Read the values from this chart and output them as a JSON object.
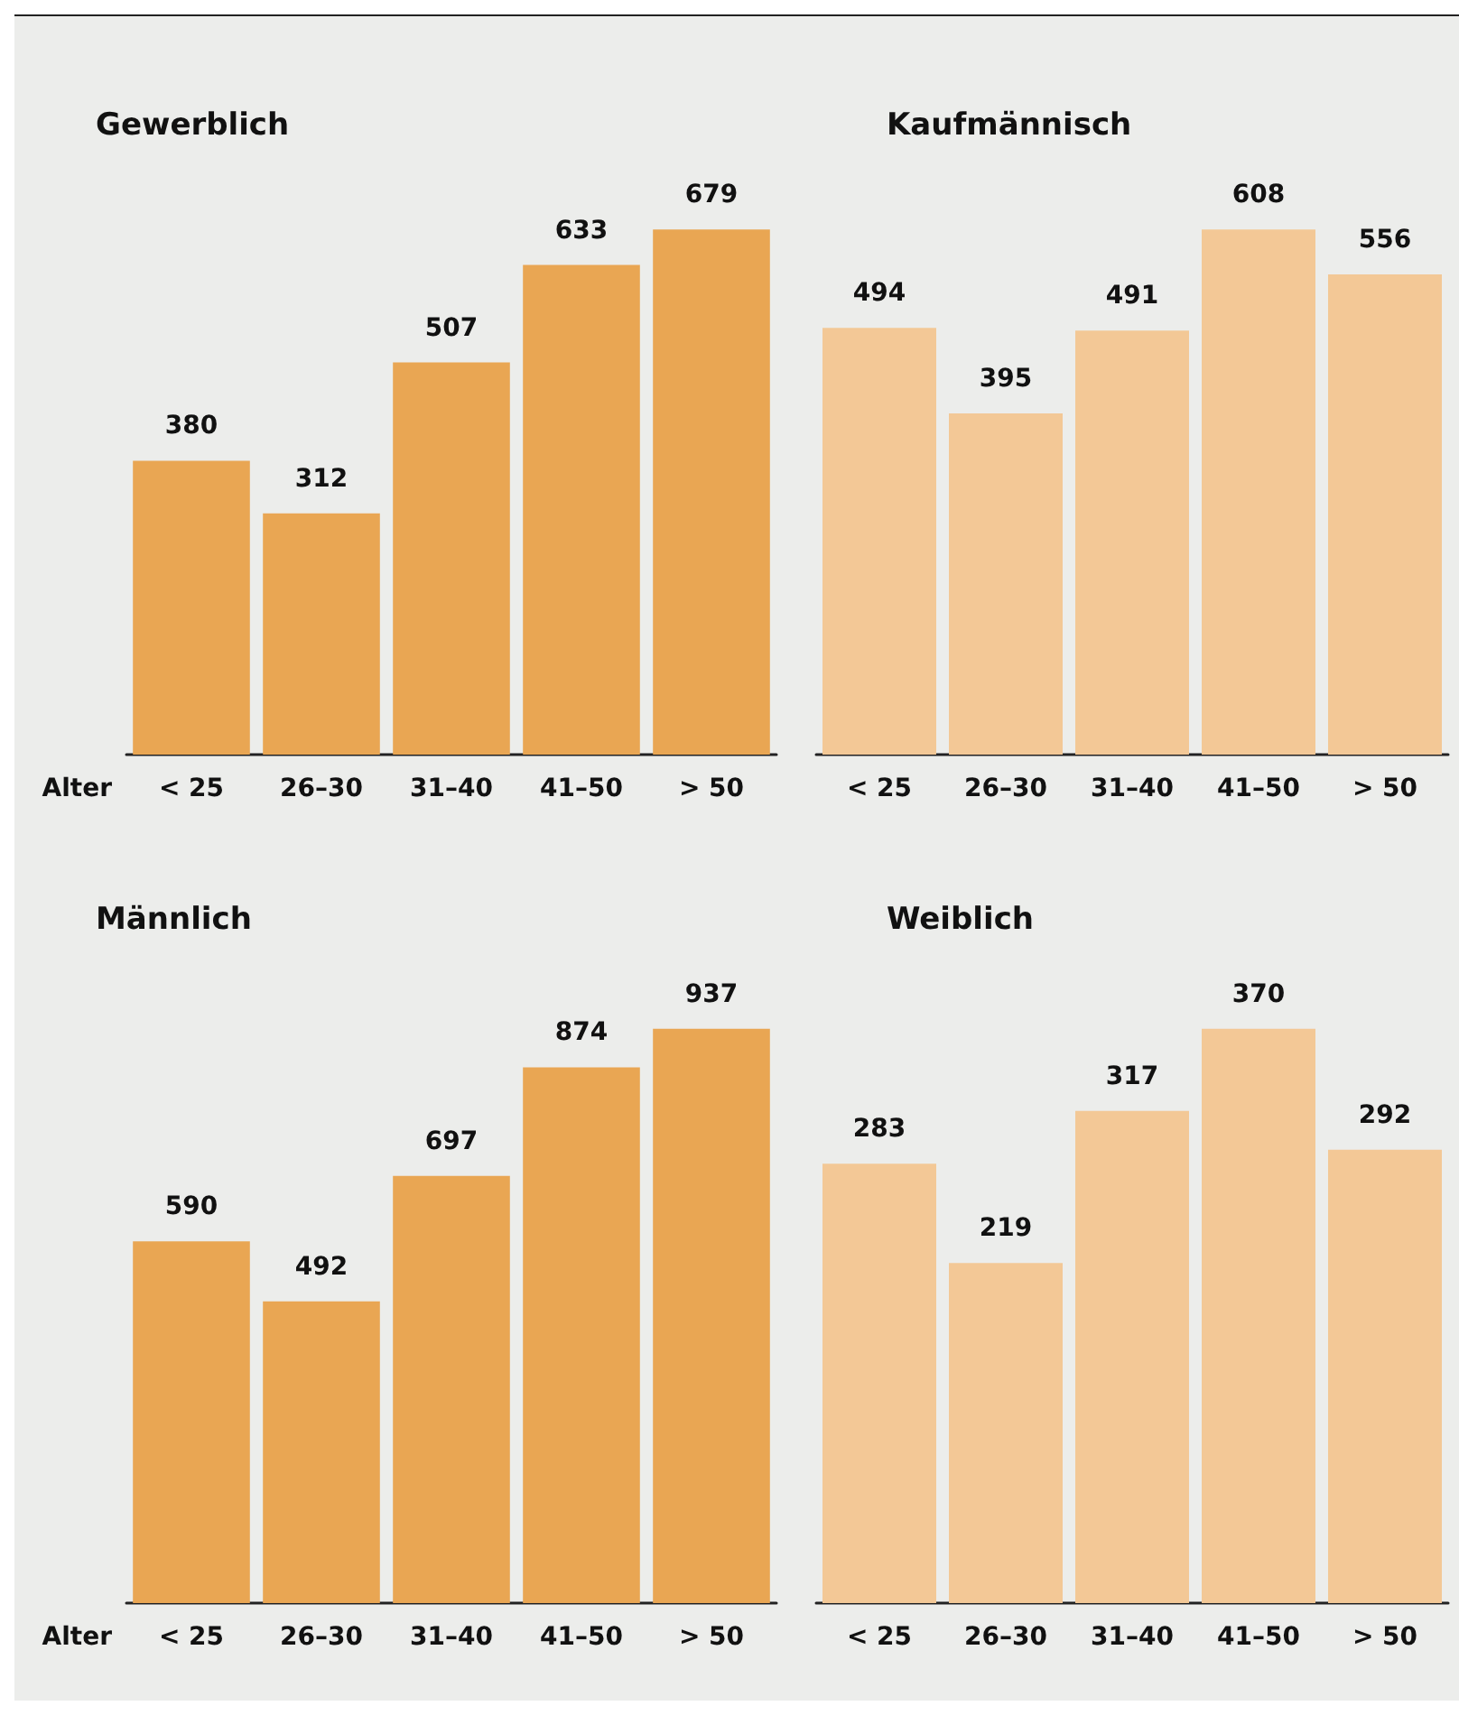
{
  "chart_data": [
    {
      "type": "bar",
      "title": "Gewerblich",
      "xlabel": "Alter",
      "categories": [
        "< 25",
        "26–30",
        "31–40",
        "41–50",
        "> 50"
      ],
      "values": [
        380,
        312,
        507,
        633,
        679
      ],
      "color": "#e9a653",
      "data_labels": true
    },
    {
      "type": "bar",
      "title": "Kaufmännisch",
      "categories": [
        "< 25",
        "26–30",
        "31–40",
        "41–50",
        "> 50"
      ],
      "values": [
        494,
        395,
        491,
        608,
        556
      ],
      "color": "#f3c896",
      "data_labels": true
    },
    {
      "type": "bar",
      "title": "Männlich",
      "xlabel": "Alter",
      "categories": [
        "< 25",
        "26–30",
        "31–40",
        "41–50",
        "> 50"
      ],
      "values": [
        590,
        492,
        697,
        874,
        937
      ],
      "color": "#e9a653",
      "data_labels": true
    },
    {
      "type": "bar",
      "title": "Weiblich",
      "categories": [
        "< 25",
        "26–30",
        "31–40",
        "41–50",
        "> 50"
      ],
      "values": [
        283,
        219,
        317,
        370,
        292
      ],
      "color": "#f3c896",
      "data_labels": true
    }
  ]
}
